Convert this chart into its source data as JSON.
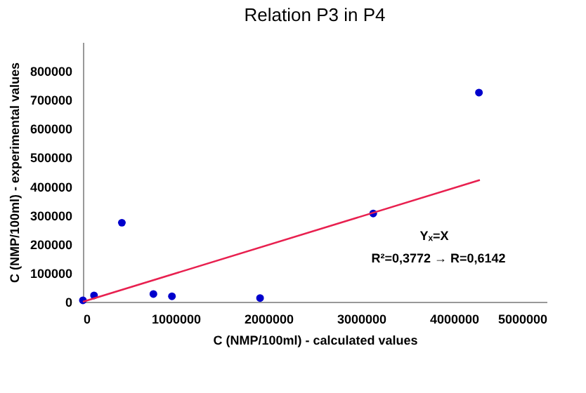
{
  "chart_data": {
    "type": "scatter",
    "title": "Relation P3 in P4",
    "xlabel": "C (NMP/100ml) - calculated values",
    "ylabel": "C (NMP/100ml) - experimental values",
    "xlim": [
      0,
      5000000
    ],
    "xticks": [
      0,
      1000000,
      2000000,
      3000000,
      4000000,
      5000000
    ],
    "ylim": [
      0,
      900000
    ],
    "yticks": [
      0,
      100000,
      200000,
      300000,
      400000,
      500000,
      600000,
      700000,
      800000
    ],
    "grid": false,
    "series": [
      {
        "color": "#0000cc",
        "x": [
          0,
          120000,
          420000,
          760000,
          960000,
          1910000,
          3130000,
          4270000
        ],
        "values": [
          5000,
          22000,
          274000,
          27000,
          19000,
          13000,
          306000,
          725000
        ],
        "marker": "circle"
      },
      {
        "type": "line",
        "color": "#e8204f",
        "x": [
          0,
          4280000
        ],
        "values": [
          0,
          422000
        ]
      }
    ],
    "annotations": [
      "Yₓ=X",
      "R²=0,3772 → R=0,6142"
    ]
  }
}
